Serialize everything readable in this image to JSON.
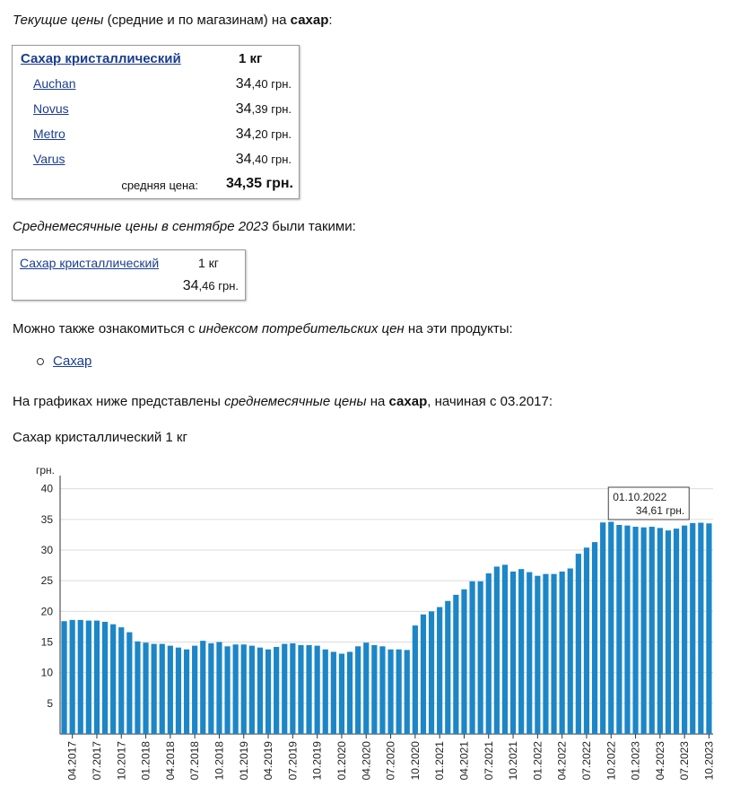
{
  "intro": {
    "pre": "Текущие цены",
    "mid": " (средние и по магазинам) на ",
    "product": "сахар",
    "post": ":"
  },
  "current_table": {
    "product_link": "Сахар кристаллический",
    "unit": "1 кг",
    "stores": [
      {
        "name": "Auchan",
        "int": "34",
        "frac": ",40 грн."
      },
      {
        "name": "Novus",
        "int": "34",
        "frac": ",39 грн."
      },
      {
        "name": "Metro",
        "int": "34",
        "frac": ",20 грн."
      },
      {
        "name": "Varus",
        "int": "34",
        "frac": ",40 грн."
      }
    ],
    "avg_label": "средняя цена:",
    "avg_value": "34,35 грн."
  },
  "monthly": {
    "pre": "Среднемесячные цены в сентябре 2023",
    "post": " были такими:"
  },
  "monthly_table": {
    "product_link": "Сахар кристаллический",
    "unit": "1 кг",
    "int": "34",
    "frac": ",46 грн."
  },
  "cpi": {
    "pre": "Можно также ознакомиться с ",
    "em": "индексом потребительских цен",
    "post": " на эти продукты:",
    "link": "Сахар"
  },
  "graphs": {
    "pre": "На графиках ниже представлены ",
    "em": "среднемесячные цены",
    "mid": " на ",
    "product": "сахар",
    "post": ", начиная с 03.2017:"
  },
  "chart_title": "Сахар кристаллический 1 кг",
  "colors": {
    "bar": "#1c86c7",
    "link": "#1a3d8f"
  },
  "chart_data": {
    "type": "bar",
    "ylabel": "грн.",
    "ylim": [
      0,
      42
    ],
    "yticks": [
      5,
      10,
      15,
      20,
      25,
      30,
      35,
      40
    ],
    "grid": true,
    "categories": [
      "03.2017",
      "04.2017",
      "05.2017",
      "06.2017",
      "07.2017",
      "08.2017",
      "09.2017",
      "10.2017",
      "11.2017",
      "12.2017",
      "01.2018",
      "02.2018",
      "03.2018",
      "04.2018",
      "05.2018",
      "06.2018",
      "07.2018",
      "08.2018",
      "09.2018",
      "10.2018",
      "11.2018",
      "12.2018",
      "01.2019",
      "02.2019",
      "03.2019",
      "04.2019",
      "05.2019",
      "06.2019",
      "07.2019",
      "08.2019",
      "09.2019",
      "10.2019",
      "11.2019",
      "12.2019",
      "01.2020",
      "02.2020",
      "03.2020",
      "04.2020",
      "05.2020",
      "06.2020",
      "07.2020",
      "08.2020",
      "09.2020",
      "10.2020",
      "11.2020",
      "12.2020",
      "01.2021",
      "02.2021",
      "03.2021",
      "04.2021",
      "05.2021",
      "06.2021",
      "07.2021",
      "08.2021",
      "09.2021",
      "10.2021",
      "11.2021",
      "12.2021",
      "01.2022",
      "02.2022",
      "03.2022",
      "04.2022",
      "05.2022",
      "06.2022",
      "07.2022",
      "08.2022",
      "09.2022",
      "10.2022",
      "11.2022",
      "12.2022",
      "01.2023",
      "02.2023",
      "03.2023",
      "04.2023",
      "05.2023",
      "06.2023",
      "07.2023",
      "08.2023",
      "09.2023",
      "10.2023"
    ],
    "values": [
      18.4,
      18.6,
      18.6,
      18.5,
      18.5,
      18.3,
      17.9,
      17.4,
      16.6,
      15.1,
      14.9,
      14.7,
      14.7,
      14.4,
      14.1,
      13.8,
      14.4,
      15.2,
      14.8,
      15.0,
      14.3,
      14.6,
      14.6,
      14.4,
      14.1,
      13.8,
      14.2,
      14.7,
      14.8,
      14.5,
      14.5,
      14.4,
      13.8,
      13.4,
      13.1,
      13.4,
      14.3,
      14.9,
      14.5,
      14.3,
      13.8,
      13.8,
      13.7,
      17.7,
      19.5,
      20.0,
      20.7,
      21.7,
      22.7,
      23.6,
      24.9,
      24.9,
      26.2,
      27.3,
      27.6,
      26.5,
      26.9,
      26.4,
      25.8,
      26.1,
      26.1,
      26.5,
      27.0,
      29.4,
      30.4,
      31.3,
      34.5,
      34.61,
      34.1,
      34.0,
      33.8,
      33.7,
      33.8,
      33.6,
      33.2,
      33.5,
      34.0,
      34.4,
      34.46,
      34.35
    ],
    "xtick_labels": [
      "04.2017",
      "07.2017",
      "10.2017",
      "01.2018",
      "04.2018",
      "07.2018",
      "10.2018",
      "01.2019",
      "04.2019",
      "07.2019",
      "10.2019",
      "01.2020",
      "04.2020",
      "07.2020",
      "10.2020",
      "01.2021",
      "04.2021",
      "07.2021",
      "10.2021",
      "01.2022",
      "04.2022",
      "07.2022",
      "10.2022",
      "01.2023",
      "04.2023",
      "07.2023",
      "10.2023"
    ],
    "tooltip": {
      "date": "01.10.2022",
      "value": "34,61 грн."
    }
  }
}
